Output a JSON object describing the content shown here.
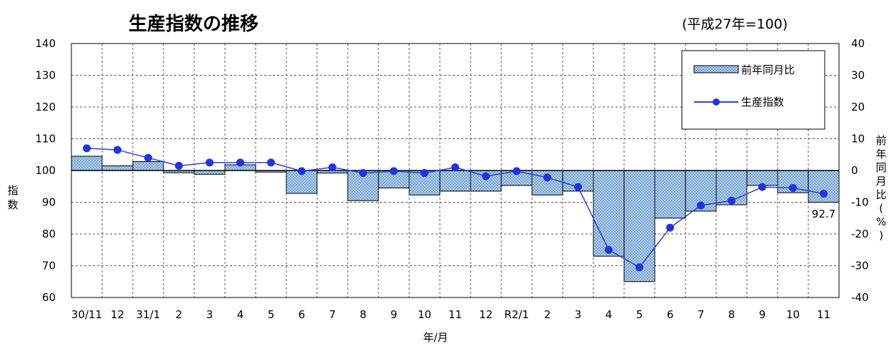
{
  "chart_data": {
    "type": "bar+line",
    "title": "生産指数の推移",
    "subtitle": "(平成27年=100)",
    "xlabel": "年/月",
    "ylabel_left": "指数",
    "ylabel_right": "前年同月比(%)",
    "ylim_left": [
      60,
      140
    ],
    "ylim_right": [
      -40,
      40
    ],
    "yticks_left": [
      "140",
      "130",
      "120",
      "110",
      "100",
      "90",
      "80",
      "70",
      "60"
    ],
    "yticks_right": [
      "40",
      "30",
      "20",
      "10",
      "0",
      "-10",
      "-20",
      "-30",
      "-40"
    ],
    "categories": [
      "30/11",
      "12",
      "31/1",
      "2",
      "3",
      "4",
      "5",
      "6",
      "7",
      "8",
      "9",
      "10",
      "11",
      "12",
      "R2/1",
      "2",
      "3",
      "4",
      "5",
      "6",
      "7",
      "8",
      "9",
      "10",
      "11"
    ],
    "series": [
      {
        "name": "前年同月比",
        "type": "bar",
        "axis": "right",
        "values": [
          4.5,
          1.5,
          2.8,
          -0.7,
          -1.2,
          1.8,
          -0.5,
          -7.2,
          -0.8,
          -9.5,
          -5.5,
          -7.7,
          -6.5,
          -6.5,
          -4.7,
          -7.7,
          -6.5,
          -27,
          -35,
          -15,
          -12.8,
          -10.8,
          -4.7,
          -7,
          -10
        ]
      },
      {
        "name": "生産指数",
        "type": "line",
        "axis": "left",
        "values": [
          107,
          106.5,
          104,
          101.5,
          102.5,
          102.5,
          102.5,
          99.8,
          101,
          99.2,
          99.8,
          99.2,
          101,
          98.2,
          99.8,
          97.8,
          94.8,
          75,
          69.5,
          82,
          89,
          90.5,
          94.8,
          94.5,
          92.7
        ]
      }
    ],
    "annotations": [
      {
        "text": "92.7",
        "category": "11"
      }
    ],
    "legend_position": "top-right",
    "grid": true
  },
  "colors": {
    "bar_fill": "#a9cdf0",
    "bar_dot": "#4a6a9a",
    "line": "#2b3fe0",
    "marker": "#1f33e6"
  }
}
